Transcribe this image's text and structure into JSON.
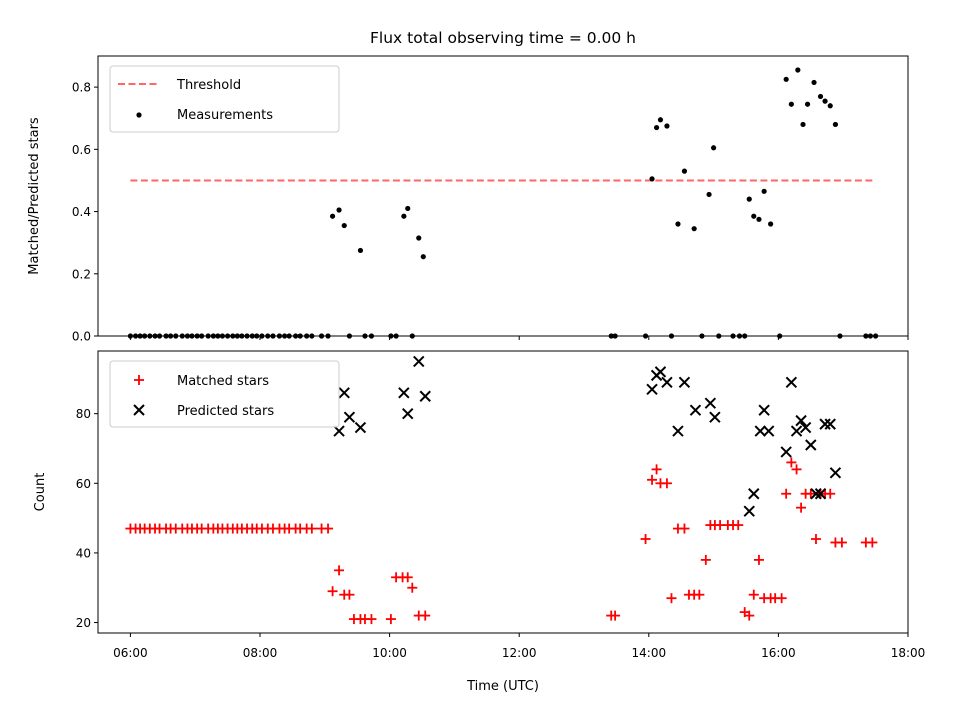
{
  "chart_data": [
    {
      "type": "scatter",
      "title": "Flux total observing time = 0.00 h",
      "xlabel": "",
      "ylabel": "Matched/Predicted stars",
      "x_unit": "hours UTC",
      "xlim": [
        5.5,
        18.0
      ],
      "ylim": [
        0.0,
        0.9
      ],
      "y_ticks": [
        0.0,
        0.2,
        0.4,
        0.6,
        0.8
      ],
      "y_tick_labels": [
        "0.0",
        "0.2",
        "0.4",
        "0.6",
        "0.8"
      ],
      "legend_position": "top-left",
      "grid": false,
      "threshold": {
        "name": "Threshold",
        "color": "#ff6666",
        "style": "dashed",
        "y": 0.5,
        "x_start": 6.0,
        "x_end": 17.45
      },
      "series": [
        {
          "name": "Measurements",
          "color": "#000000",
          "marker": "dot",
          "x": [
            6.0,
            6.08,
            6.15,
            6.22,
            6.3,
            6.38,
            6.45,
            6.55,
            6.62,
            6.7,
            6.8,
            6.88,
            6.95,
            7.03,
            7.1,
            7.2,
            7.28,
            7.35,
            7.42,
            7.5,
            7.58,
            7.65,
            7.72,
            7.8,
            7.88,
            7.95,
            8.03,
            8.12,
            8.2,
            8.3,
            8.38,
            8.45,
            8.55,
            8.62,
            8.72,
            8.8,
            8.95,
            9.05,
            9.12,
            9.22,
            9.3,
            9.38,
            9.55,
            9.62,
            9.72,
            10.02,
            10.1,
            10.22,
            10.28,
            10.35,
            10.45,
            10.52,
            13.42,
            13.48,
            13.95,
            14.05,
            14.12,
            14.18,
            14.28,
            14.35,
            14.45,
            14.55,
            14.7,
            14.82,
            14.93,
            15.0,
            15.08,
            15.3,
            15.4,
            15.48,
            15.55,
            15.62,
            15.7,
            15.78,
            15.88,
            16.02,
            16.12,
            16.2,
            16.3,
            16.38,
            16.45,
            16.55,
            16.65,
            16.72,
            16.8,
            16.88,
            16.95,
            17.35,
            17.42,
            17.5
          ],
          "y": [
            0,
            0,
            0,
            0,
            0,
            0,
            0,
            0,
            0,
            0,
            0,
            0,
            0,
            0,
            0,
            0,
            0,
            0,
            0,
            0,
            0,
            0,
            0,
            0,
            0,
            0,
            0,
            0,
            0,
            0,
            0,
            0,
            0,
            0,
            0,
            0,
            0,
            0,
            0.385,
            0.405,
            0.355,
            0,
            0.275,
            0,
            0,
            0,
            0,
            0.385,
            0.41,
            0,
            0.315,
            0.255,
            0,
            0,
            0,
            0.505,
            0.67,
            0.695,
            0.675,
            0,
            0.36,
            0.53,
            0.345,
            0,
            0.455,
            0.605,
            0,
            0,
            0,
            0,
            0.44,
            0.385,
            0.375,
            0.465,
            0.36,
            0,
            0.825,
            0.745,
            0.855,
            0.68,
            0.745,
            0.815,
            0.77,
            0.755,
            0.74,
            0.68,
            0,
            0,
            0,
            0
          ]
        }
      ]
    },
    {
      "type": "scatter",
      "title": "",
      "xlabel": "Time (UTC)",
      "ylabel": "Count",
      "x_unit": "hours UTC",
      "xlim": [
        5.5,
        18.0
      ],
      "ylim": [
        17,
        98
      ],
      "x_ticks": [
        6,
        8,
        10,
        12,
        14,
        16,
        18
      ],
      "x_tick_labels": [
        "06:00",
        "08:00",
        "10:00",
        "12:00",
        "14:00",
        "16:00",
        "18:00"
      ],
      "y_ticks": [
        20,
        40,
        60,
        80
      ],
      "y_tick_labels": [
        "20",
        "40",
        "60",
        "80"
      ],
      "legend_position": "top-left",
      "grid": false,
      "series": [
        {
          "name": "Matched stars",
          "color": "#ff0000",
          "marker": "plus",
          "x": [
            6.0,
            6.08,
            6.15,
            6.22,
            6.3,
            6.38,
            6.45,
            6.55,
            6.62,
            6.7,
            6.8,
            6.88,
            6.95,
            7.03,
            7.1,
            7.2,
            7.28,
            7.35,
            7.42,
            7.5,
            7.58,
            7.65,
            7.72,
            7.8,
            7.88,
            7.95,
            8.03,
            8.12,
            8.2,
            8.3,
            8.38,
            8.45,
            8.55,
            8.62,
            8.72,
            8.8,
            8.95,
            9.05,
            9.12,
            9.22,
            9.3,
            9.38,
            9.45,
            9.55,
            9.62,
            9.72,
            10.02,
            10.1,
            10.2,
            10.28,
            10.35,
            10.45,
            10.55,
            13.42,
            13.48,
            13.95,
            14.05,
            14.12,
            14.18,
            14.28,
            14.35,
            14.45,
            14.55,
            14.62,
            14.7,
            14.78,
            14.88,
            14.95,
            15.02,
            15.1,
            15.22,
            15.3,
            15.38,
            15.48,
            15.55,
            15.62,
            15.7,
            15.78,
            15.88,
            15.95,
            16.05,
            16.12,
            16.2,
            16.28,
            16.35,
            16.42,
            16.5,
            16.58,
            16.65,
            16.72,
            16.8,
            16.88,
            16.98,
            17.35,
            17.45
          ],
          "y": [
            47,
            47,
            47,
            47,
            47,
            47,
            47,
            47,
            47,
            47,
            47,
            47,
            47,
            47,
            47,
            47,
            47,
            47,
            47,
            47,
            47,
            47,
            47,
            47,
            47,
            47,
            47,
            47,
            47,
            47,
            47,
            47,
            47,
            47,
            47,
            47,
            47,
            47,
            29,
            35,
            28,
            28,
            21,
            21,
            21,
            21,
            21,
            33,
            33,
            33,
            30,
            22,
            22,
            22,
            22,
            44,
            61,
            64,
            60,
            60,
            27,
            47,
            47,
            28,
            28,
            28,
            38,
            48,
            48,
            48,
            48,
            48,
            48,
            23,
            22,
            28,
            38,
            27,
            27,
            27,
            27,
            57,
            66,
            64,
            53,
            57,
            57,
            44,
            57,
            57,
            57,
            43,
            43,
            43,
            43
          ]
        },
        {
          "name": "Predicted stars",
          "color": "#000000",
          "marker": "x",
          "x": [
            9.22,
            9.3,
            9.38,
            9.55,
            10.22,
            10.28,
            10.45,
            10.55,
            14.05,
            14.12,
            14.18,
            14.28,
            14.45,
            14.55,
            14.72,
            14.95,
            15.02,
            15.55,
            15.62,
            15.72,
            15.78,
            15.85,
            16.12,
            16.2,
            16.28,
            16.35,
            16.42,
            16.5,
            16.58,
            16.65,
            16.72,
            16.8,
            16.88
          ],
          "y": [
            75,
            86,
            79,
            76,
            86,
            80,
            95,
            85,
            87,
            91,
            92,
            89,
            75,
            89,
            81,
            83,
            79,
            52,
            57,
            75,
            81,
            75,
            69,
            89,
            75,
            78,
            76,
            71,
            57,
            57,
            77,
            77,
            63
          ]
        }
      ]
    }
  ]
}
